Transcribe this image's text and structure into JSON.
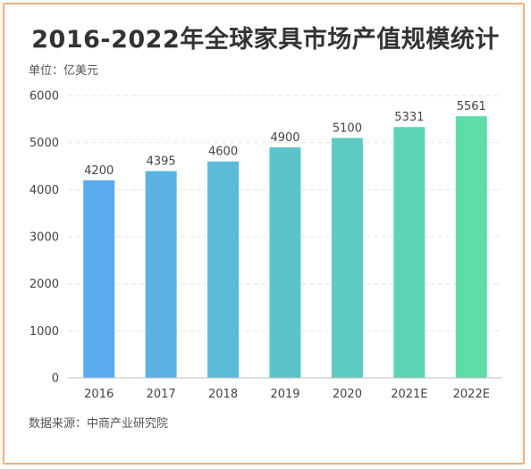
{
  "title": "2016-2022年全球家具市场产值规模统计",
  "unit_label": "单位：亿美元",
  "source_label": "数据来源：中商产业研究院",
  "colors": {
    "border": "#f3b07a",
    "bar_start": "#5aaaf0",
    "bar_end": "#5edcaa",
    "grid": "#e6e6e6"
  },
  "chart_data": {
    "type": "bar",
    "categories": [
      "2016",
      "2017",
      "2018",
      "2019",
      "2020",
      "2021E",
      "2022E"
    ],
    "values": [
      4200,
      4395,
      4600,
      4900,
      5100,
      5331,
      5561
    ],
    "data_labels": [
      "4200",
      "4395",
      "4600",
      "4900",
      "5100",
      "5331",
      "5561"
    ],
    "ylim": [
      0,
      6000
    ],
    "yticks": [
      0,
      1000,
      2000,
      3000,
      4000,
      5000,
      6000
    ],
    "ytick_labels": [
      "0",
      "1000",
      "2000",
      "3000",
      "4000",
      "5000",
      "6000"
    ],
    "grid": true,
    "legend": "none"
  }
}
